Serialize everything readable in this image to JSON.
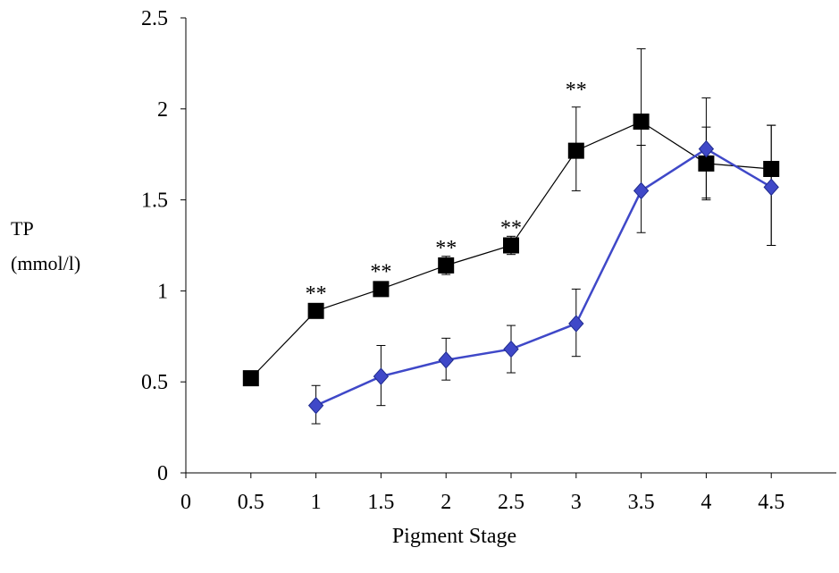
{
  "chart_data": {
    "type": "line",
    "xlabel": "Pigment Stage",
    "ylabel": [
      "TP",
      "(mmol/l)"
    ],
    "xlim": [
      0,
      5
    ],
    "ylim": [
      0,
      2.5
    ],
    "xticks": [
      "0",
      "0.5",
      "1",
      "1.5",
      "2",
      "2.5",
      "3",
      "3.5",
      "4",
      "4.5"
    ],
    "yticks": [
      "0",
      "0.5",
      "1",
      "1.5",
      "2",
      "2.5"
    ],
    "grid": false,
    "series": [
      {
        "marker": "square",
        "color": "#000000",
        "x": [
          0.5,
          1,
          1.5,
          2,
          2.5,
          3,
          3.5,
          4,
          4.5
        ],
        "y": [
          0.52,
          0.89,
          1.01,
          1.14,
          1.25,
          1.77,
          1.93,
          1.7,
          1.67
        ],
        "err_up": [
          0.03,
          0.03,
          0.03,
          0.05,
          0.05,
          0.24,
          0.4,
          0.36,
          0.24
        ],
        "err_down": [
          0.03,
          0.03,
          0.03,
          0.05,
          0.05,
          0.22,
          0.13,
          0.2,
          0.42
        ]
      },
      {
        "marker": "diamond",
        "color": "#3f48c8",
        "x": [
          1,
          1.5,
          2,
          2.5,
          3,
          3.5,
          4,
          4.5
        ],
        "y": [
          0.37,
          0.53,
          0.62,
          0.68,
          0.82,
          1.55,
          1.78,
          1.57
        ],
        "err_up": [
          0.11,
          0.17,
          0.12,
          0.13,
          0.19,
          0.25,
          0.12,
          0.34
        ],
        "err_down": [
          0.1,
          0.16,
          0.11,
          0.13,
          0.18,
          0.23,
          0.27,
          0.32
        ]
      }
    ],
    "annotations": [
      {
        "text": "**",
        "x": 1,
        "y": 0.89
      },
      {
        "text": "**",
        "x": 1.5,
        "y": 1.01
      },
      {
        "text": "**",
        "x": 2,
        "y": 1.14
      },
      {
        "text": "**",
        "x": 2.5,
        "y": 1.25
      },
      {
        "text": "**",
        "x": 3,
        "y": 2.01
      }
    ]
  }
}
